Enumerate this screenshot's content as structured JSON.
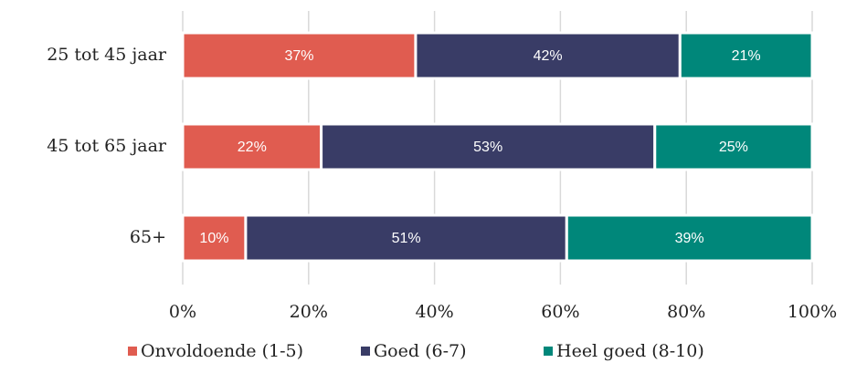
{
  "chart_data": {
    "type": "bar",
    "orientation": "horizontal",
    "stacked": true,
    "categories": [
      "25 tot 45 jaar",
      "45 tot 65 jaar",
      "65+"
    ],
    "series": [
      {
        "name": "Onvoldoende (1-5)",
        "color": "#e05c50",
        "values": [
          37,
          22,
          10
        ],
        "value_labels": [
          "37%",
          "22%",
          "10%"
        ]
      },
      {
        "name": "Goed (6-7)",
        "color": "#393c66",
        "values": [
          42,
          53,
          51
        ],
        "value_labels": [
          "42%",
          "53%",
          "51%"
        ]
      },
      {
        "name": "Heel goed (8-10)",
        "color": "#00877a",
        "values": [
          21,
          25,
          39
        ],
        "value_labels": [
          "21%",
          "25%",
          "39%"
        ]
      }
    ],
    "xlim": [
      0,
      100
    ],
    "xticks": [
      {
        "value": 0,
        "label": "0%"
      },
      {
        "value": 20,
        "label": "20%"
      },
      {
        "value": 40,
        "label": "40%"
      },
      {
        "value": 60,
        "label": "60%"
      },
      {
        "value": 80,
        "label": "80%"
      },
      {
        "value": 100,
        "label": "100%"
      }
    ],
    "grid": true,
    "legend": "bottom"
  }
}
